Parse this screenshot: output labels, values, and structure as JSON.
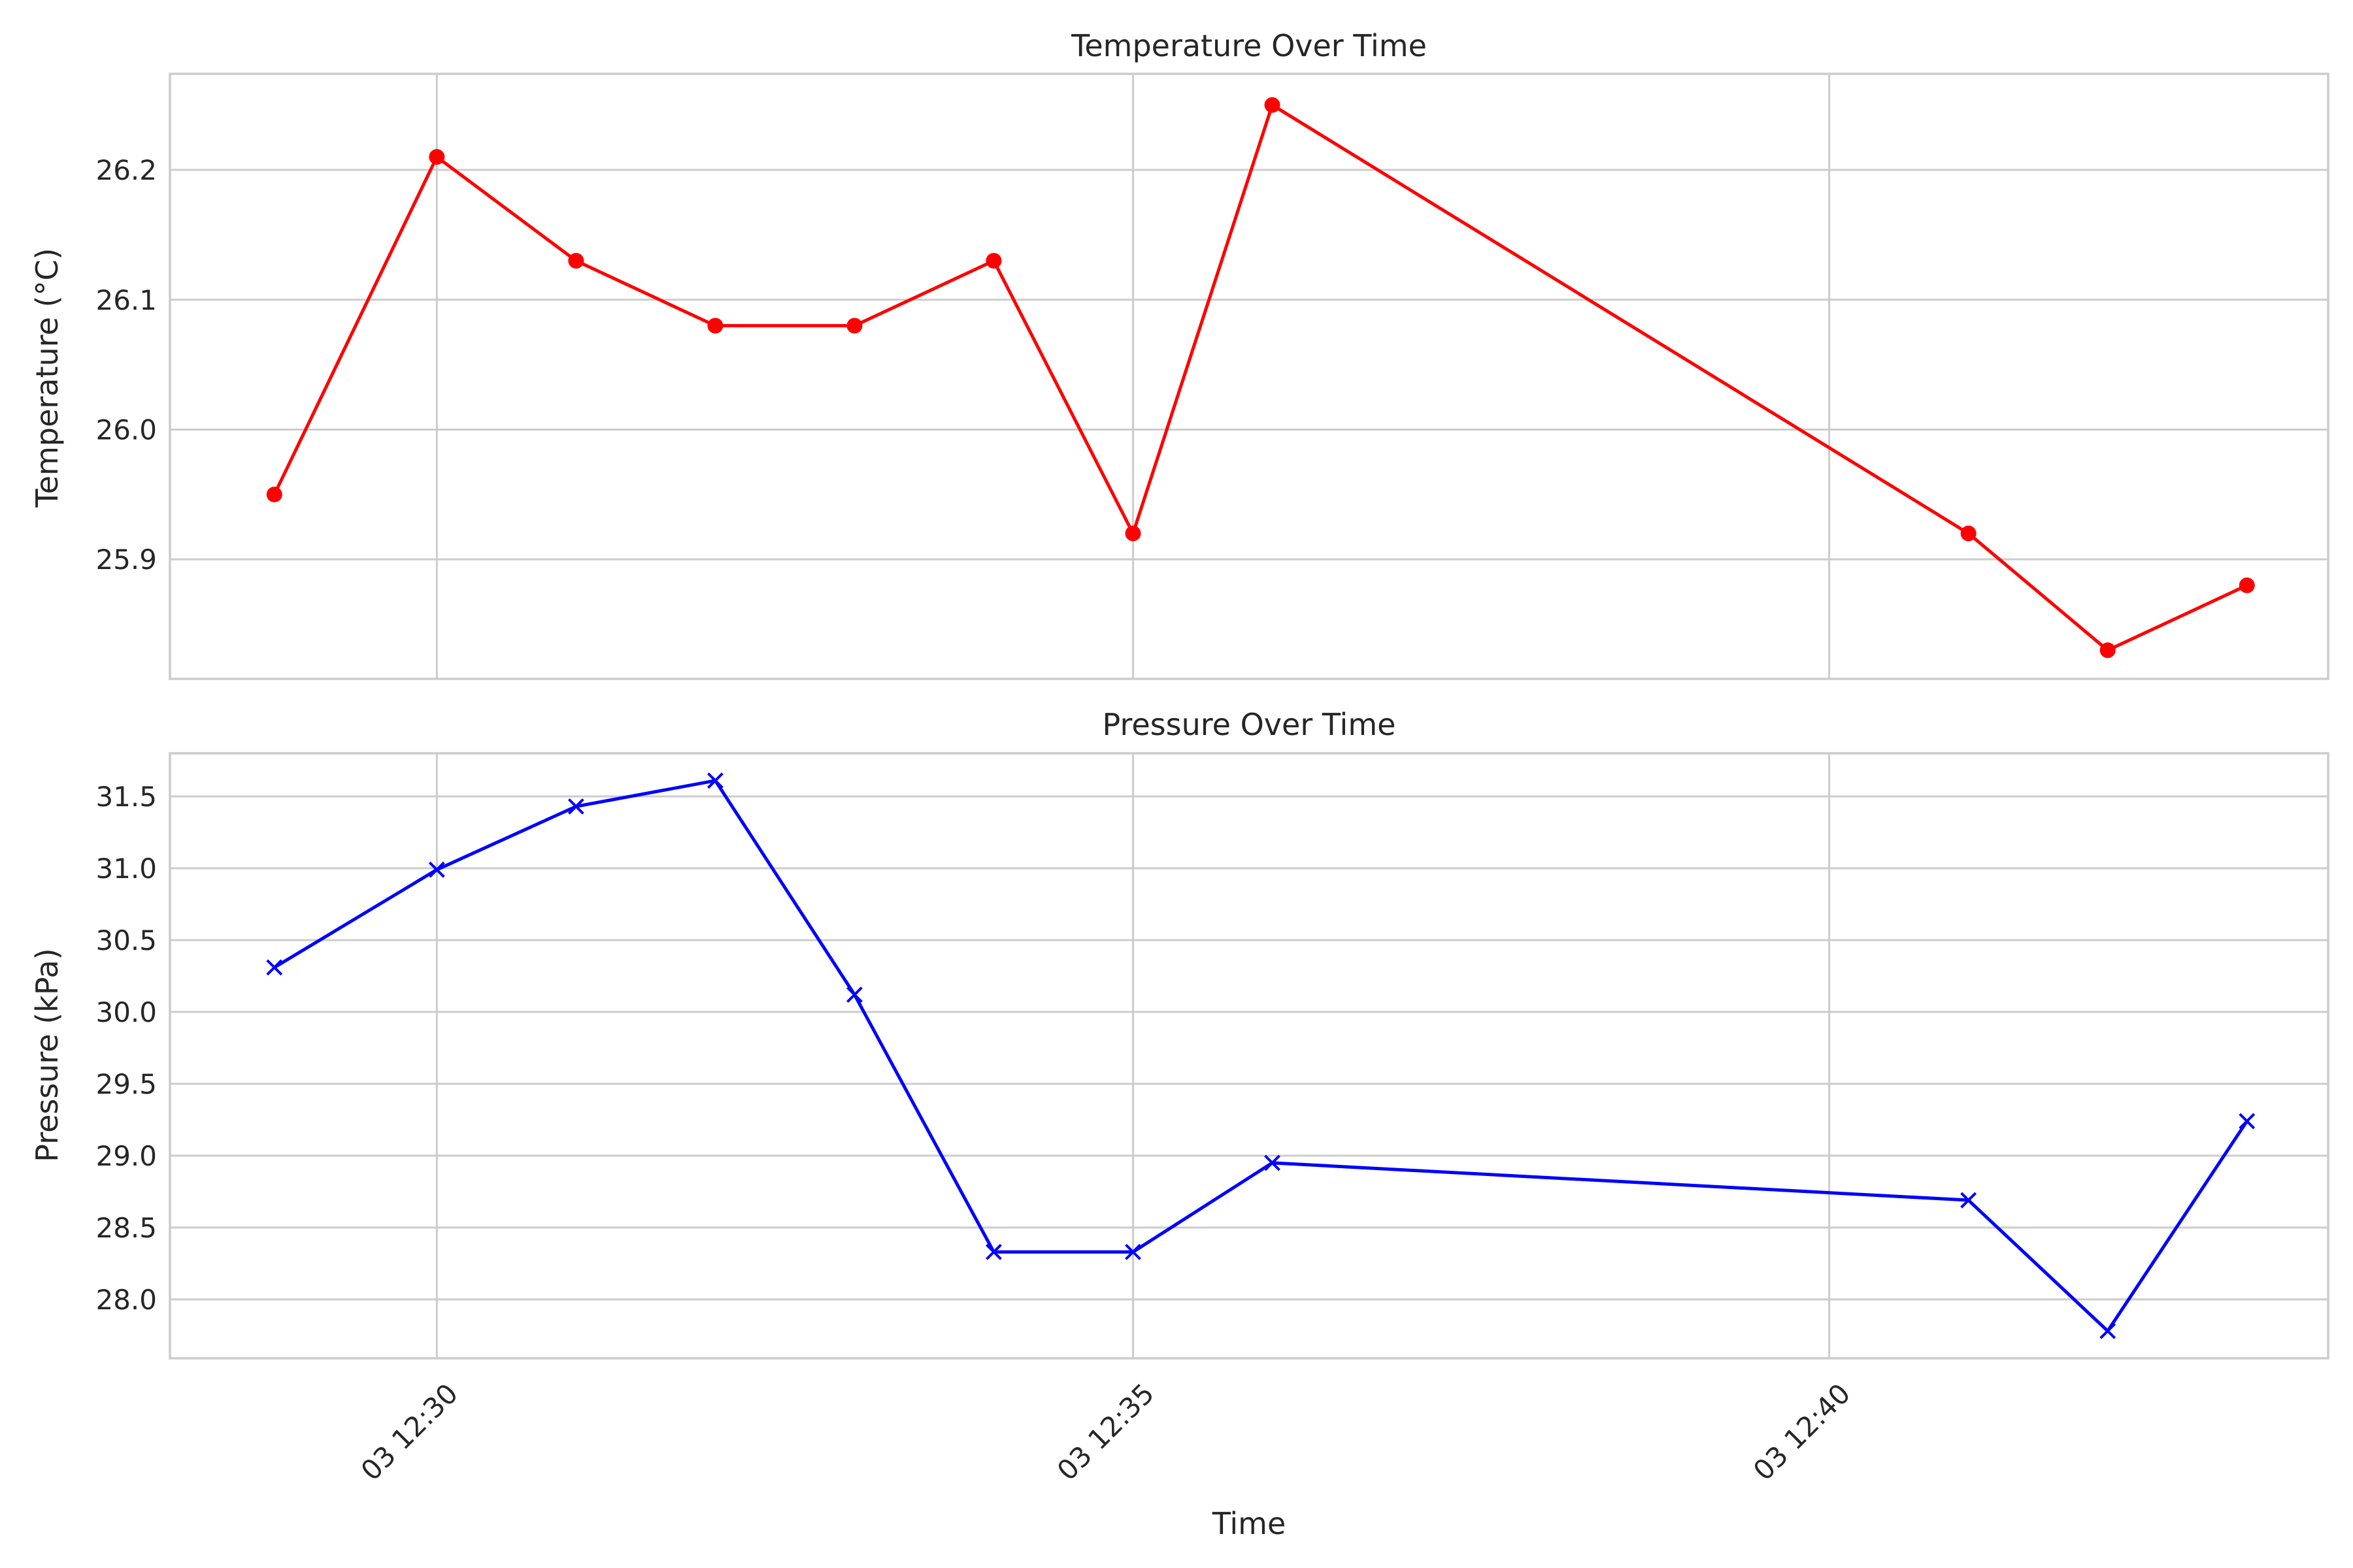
{
  "chart_data": [
    {
      "type": "line",
      "title": "Temperature Over Time",
      "xlabel": "",
      "ylabel": "Temperature (°C)",
      "x": [
        "12:28:50",
        "12:30:00",
        "12:31:00",
        "12:32:00",
        "12:33:00",
        "12:34:00",
        "12:35:00",
        "12:36:00",
        "12:41:00",
        "12:42:00",
        "12:43:00"
      ],
      "series": [
        {
          "values": [
            25.95,
            26.21,
            26.13,
            26.08,
            26.08,
            26.13,
            25.92,
            26.25,
            25.92,
            25.83,
            25.88
          ],
          "color": "#ff0000",
          "marker": "circle"
        }
      ],
      "x_ticks": [
        "03 12:30",
        "03 12:35",
        "03 12:40"
      ],
      "x_tick_labels_visible": false,
      "yticks": [
        25.9,
        26.0,
        26.1,
        26.2
      ],
      "ytick_labels": [
        "25.9",
        "26.0",
        "26.1",
        "26.2"
      ],
      "xlim": [
        "12:28:05",
        "12:43:35"
      ],
      "ylim": [
        25.808,
        26.274
      ],
      "grid": true,
      "legend": "none"
    },
    {
      "type": "line",
      "title": "Pressure Over Time",
      "xlabel": "Time",
      "ylabel": "Pressure (kPa)",
      "x": [
        "12:28:50",
        "12:30:00",
        "12:31:00",
        "12:32:00",
        "12:33:00",
        "12:34:00",
        "12:35:00",
        "12:36:00",
        "12:41:00",
        "12:42:00",
        "12:43:00"
      ],
      "series": [
        {
          "values": [
            30.31,
            30.99,
            31.43,
            31.61,
            30.12,
            28.33,
            28.33,
            28.95,
            28.69,
            27.78,
            29.24
          ],
          "color": "#0000ff",
          "marker": "x"
        }
      ],
      "x_ticks": [
        "03 12:30",
        "03 12:35",
        "03 12:40"
      ],
      "xtick_labels": [
        "03 12:30",
        "03 12:35",
        "03 12:40"
      ],
      "yticks": [
        28.0,
        28.5,
        29.0,
        29.5,
        30.0,
        30.5,
        31.0,
        31.5
      ],
      "ytick_labels": [
        "28.0",
        "28.5",
        "29.0",
        "29.5",
        "30.0",
        "30.5",
        "31.0",
        "31.5"
      ],
      "xlim": [
        "12:28:05",
        "12:43:35"
      ],
      "ylim": [
        27.59,
        31.8
      ],
      "grid": true,
      "legend": "none"
    }
  ]
}
